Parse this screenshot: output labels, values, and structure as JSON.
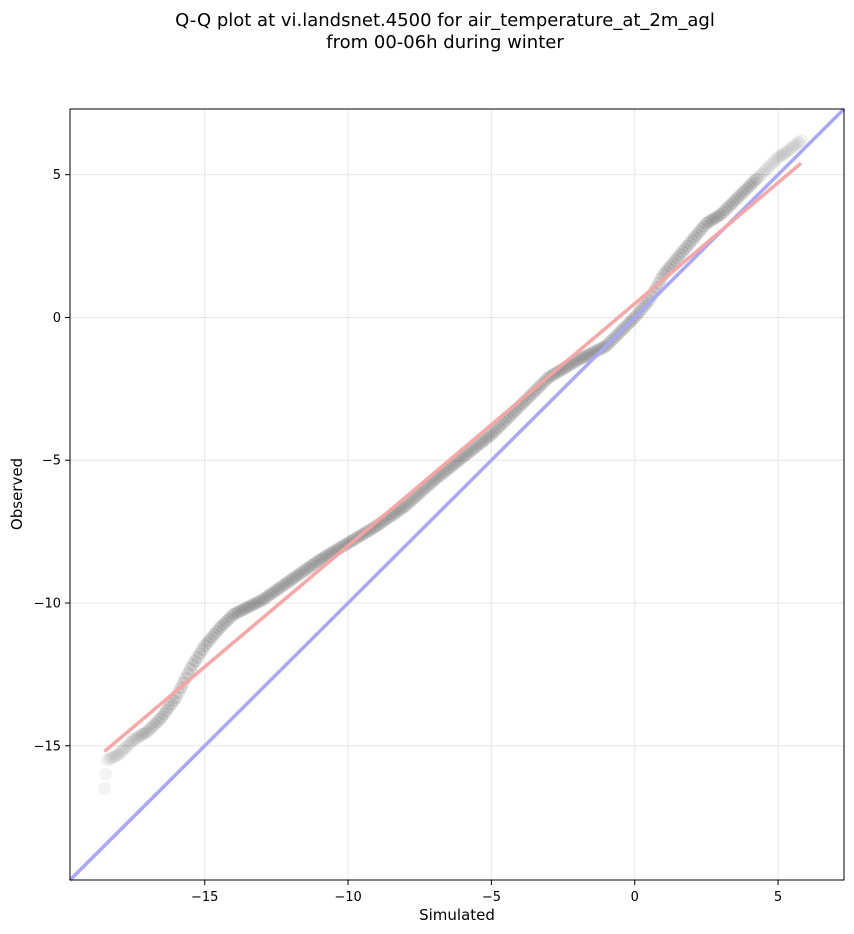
{
  "chart_data": {
    "type": "scatter",
    "title_lines": [
      "Q-Q plot at vi.landsnet.4500 for air_temperature_at_2m_agl",
      "from 00-06h during winter"
    ],
    "xlabel": "Simulated",
    "ylabel": "Observed",
    "xlim": [
      -19.7,
      7.3
    ],
    "ylim": [
      -19.7,
      7.3
    ],
    "xticks": [
      -15,
      -10,
      -5,
      0,
      5
    ],
    "yticks": [
      -15,
      -10,
      -5,
      0,
      5
    ],
    "xtick_labels": [
      "−15",
      "−10",
      "−5",
      "0",
      "5"
    ],
    "ytick_labels": [
      "−15",
      "−10",
      "−5",
      "0",
      "5"
    ],
    "grid": true,
    "colors": {
      "points": "#222222",
      "identity_line": "#a8a8f5",
      "fit_line": "#f5a3a3",
      "fit_line_dark": "#7a1010",
      "grid": "#e6e6e6"
    },
    "quantile_knots": [
      [
        -18.5,
        -16.5
      ],
      [
        -18.4,
        -15.5
      ],
      [
        -18.0,
        -15.3
      ],
      [
        -17.5,
        -14.8
      ],
      [
        -17.0,
        -14.5
      ],
      [
        -16.5,
        -14.0
      ],
      [
        -16.0,
        -13.3
      ],
      [
        -15.5,
        -12.3
      ],
      [
        -15.0,
        -11.5
      ],
      [
        -14.5,
        -10.9
      ],
      [
        -14.0,
        -10.4
      ],
      [
        -13.0,
        -9.9
      ],
      [
        -12.0,
        -9.2
      ],
      [
        -11.0,
        -8.5
      ],
      [
        -10.0,
        -7.9
      ],
      [
        -9.0,
        -7.3
      ],
      [
        -8.0,
        -6.6
      ],
      [
        -7.0,
        -5.7
      ],
      [
        -6.0,
        -4.9
      ],
      [
        -5.0,
        -4.1
      ],
      [
        -4.0,
        -3.1
      ],
      [
        -3.0,
        -2.1
      ],
      [
        -2.0,
        -1.5
      ],
      [
        -1.0,
        -1.0
      ],
      [
        -0.5,
        -0.5
      ],
      [
        0.0,
        0.0
      ],
      [
        0.5,
        0.6
      ],
      [
        1.0,
        1.5
      ],
      [
        1.5,
        2.1
      ],
      [
        2.0,
        2.7
      ],
      [
        2.5,
        3.3
      ],
      [
        3.0,
        3.6
      ],
      [
        3.5,
        4.1
      ],
      [
        4.0,
        4.6
      ],
      [
        4.5,
        5.1
      ],
      [
        5.0,
        5.6
      ],
      [
        5.3,
        5.8
      ],
      [
        5.8,
        6.2
      ]
    ],
    "fit_line": {
      "x": [
        -18.5,
        5.8
      ],
      "y": [
        -15.2,
        5.4
      ]
    },
    "identity_line": {
      "x": [
        -19.7,
        7.3
      ],
      "y": [
        -19.7,
        7.3
      ]
    }
  }
}
